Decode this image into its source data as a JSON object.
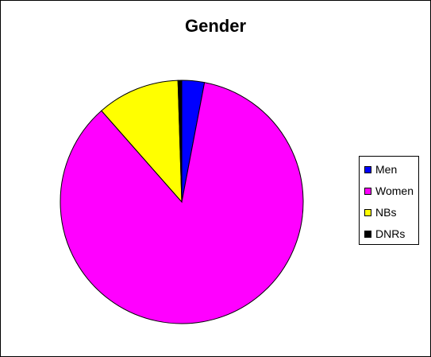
{
  "chart_data": {
    "type": "pie",
    "title": "Gender",
    "labels": [
      "Men",
      "Women",
      "NBs",
      "DNRs"
    ],
    "values": [
      3.0,
      85.5,
      11.0,
      0.5
    ],
    "colors": [
      "#0000FF",
      "#FF00FF",
      "#FFFF00",
      "#000000"
    ],
    "legend_position": "right"
  }
}
